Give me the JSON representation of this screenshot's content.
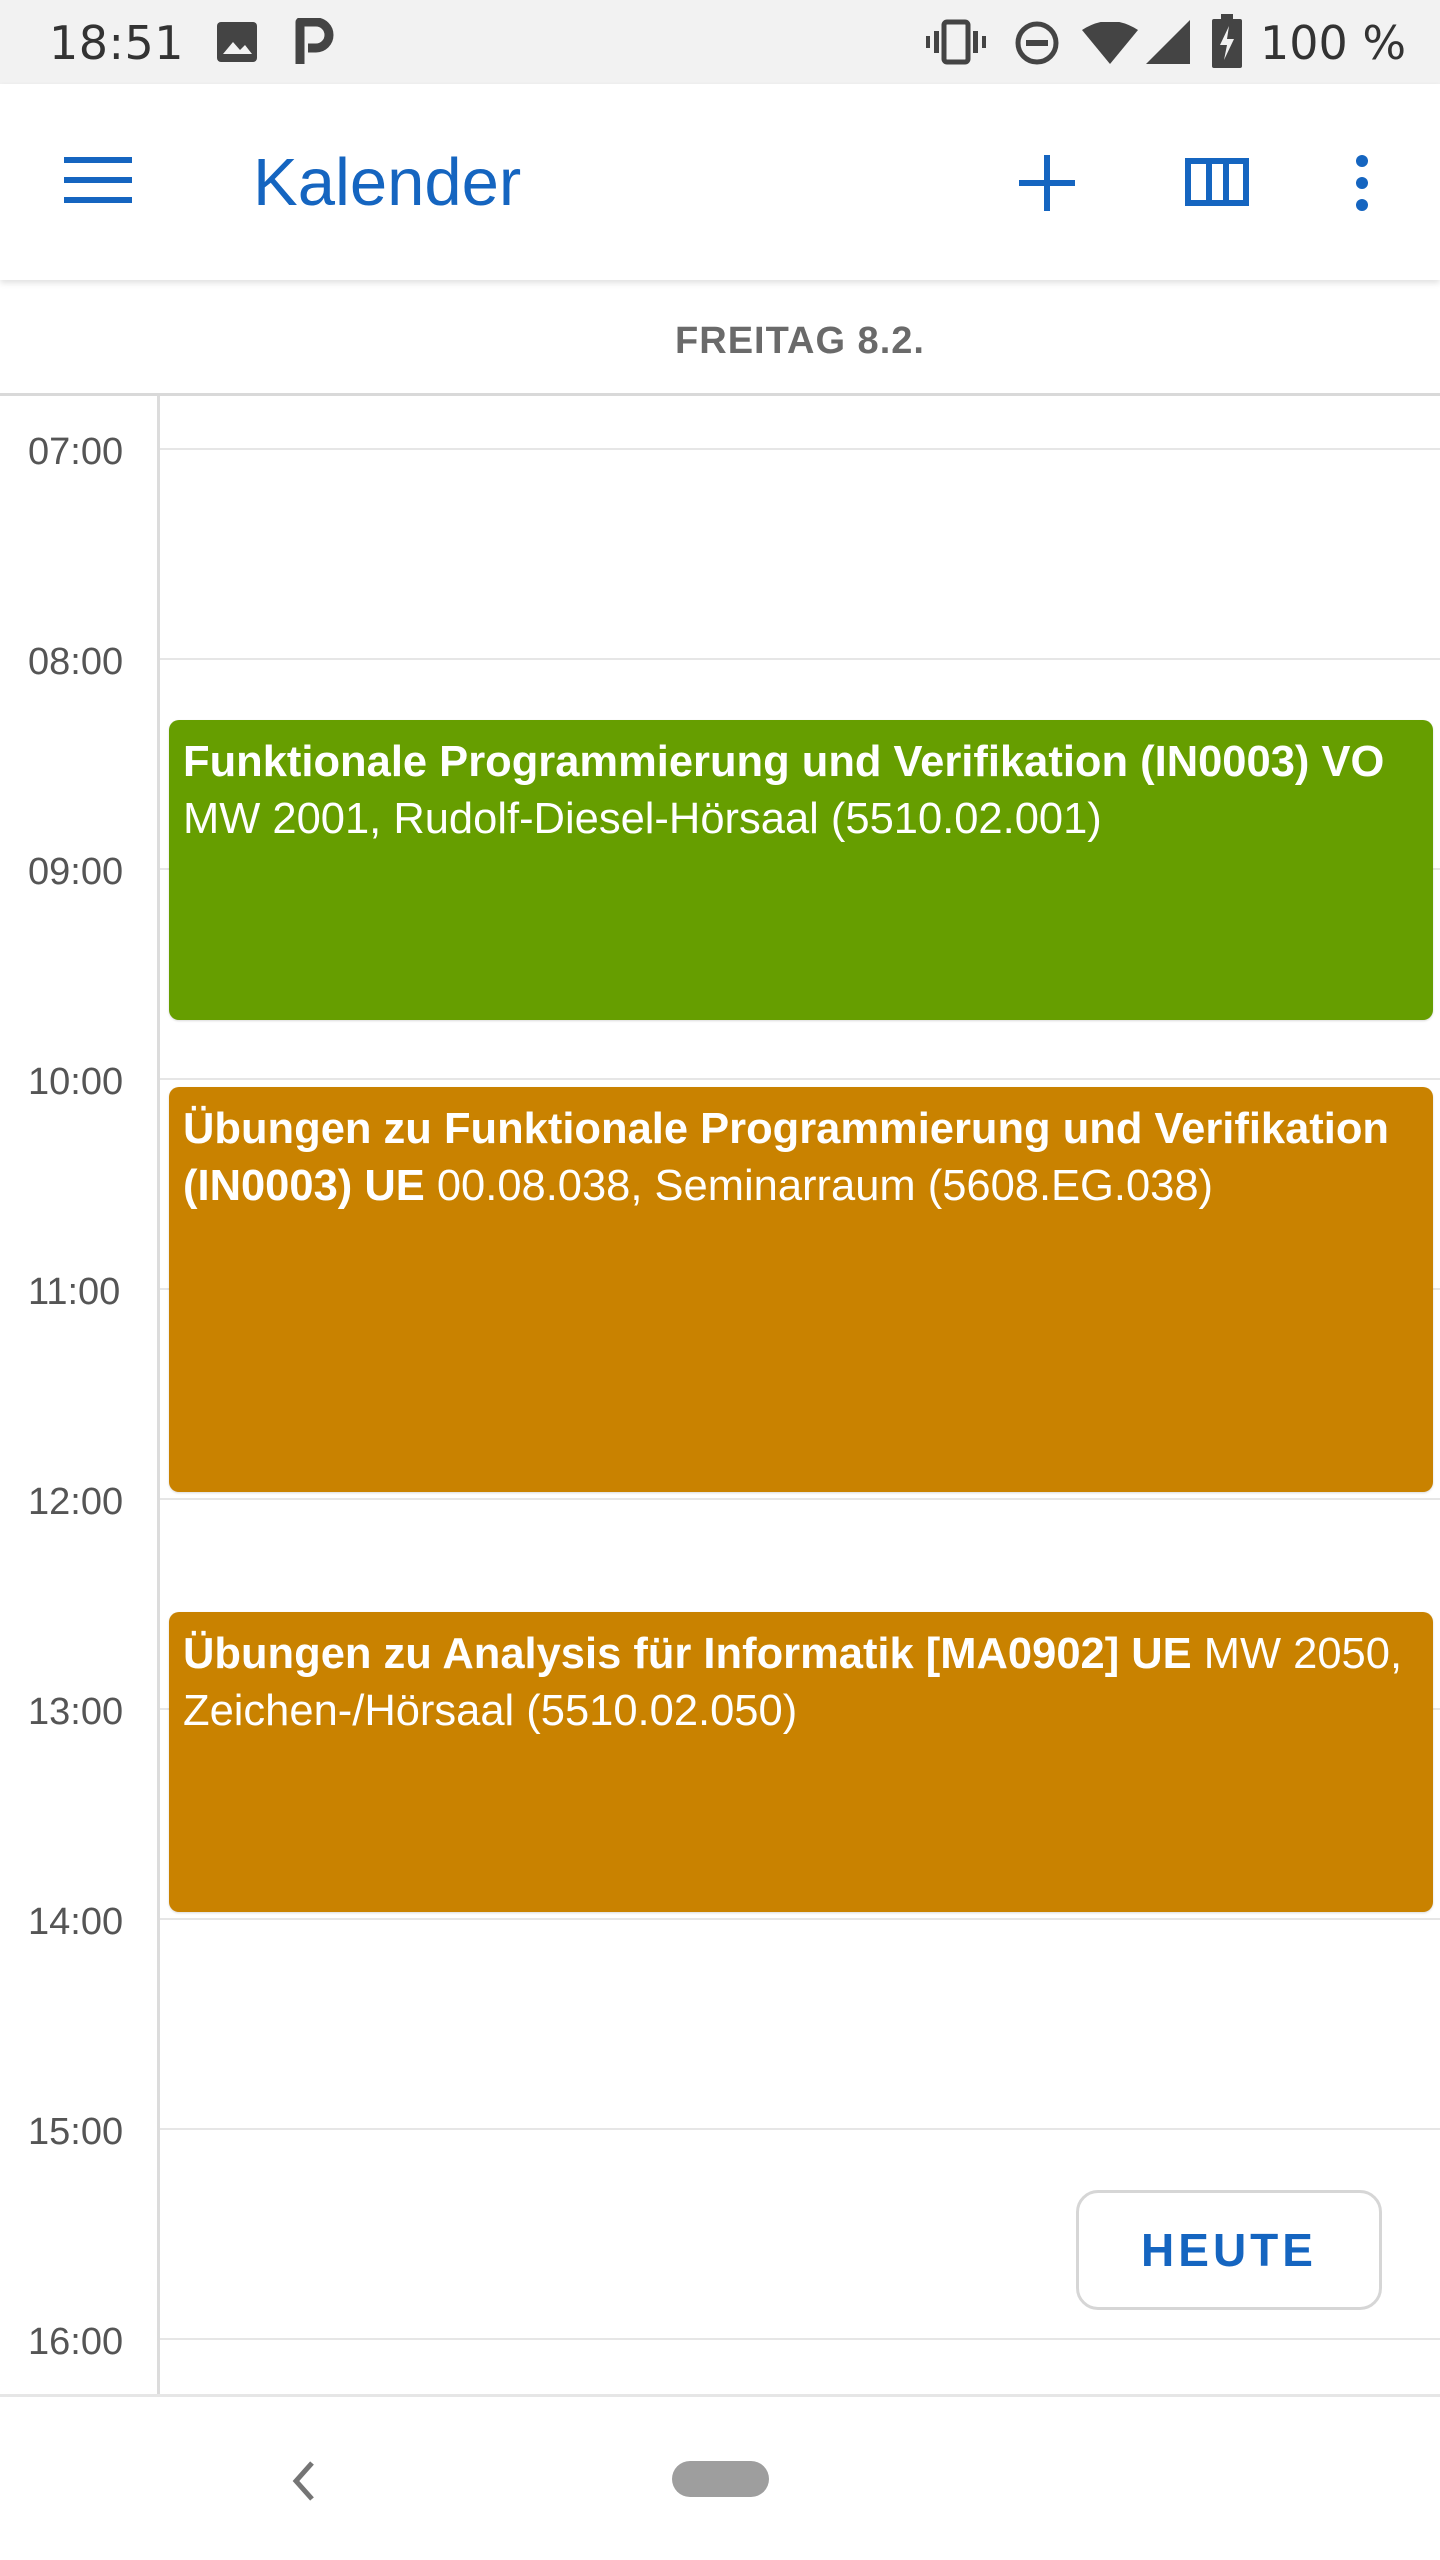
{
  "status_bar": {
    "time": "18:51",
    "battery_percent": "100 %",
    "icons": [
      "image-icon",
      "parking-icon",
      "vibrate-icon",
      "do-not-disturb-icon",
      "wifi-icon",
      "signal-icon",
      "battery-charging-icon"
    ]
  },
  "app_bar": {
    "title": "Kalender",
    "actions": [
      "menu-icon",
      "add-icon",
      "view-columns-icon",
      "more-vert-icon"
    ]
  },
  "day_header": {
    "label": "FREITAG 8.2."
  },
  "time_labels": [
    "07:00",
    "08:00",
    "09:00",
    "10:00",
    "11:00",
    "12:00",
    "13:00",
    "14:00",
    "15:00",
    "16:00"
  ],
  "events": [
    {
      "title": "Funktionale Programmierung und Verifikation (IN0003) VO",
      "location": "MW 2001, Rudolf-Diesel-Hörsaal (5510.02.001)",
      "color": "#669e00"
    },
    {
      "title": "Übungen zu Funktionale Programmierung und Verifikation (IN0003) UE",
      "location": "00.08.038, Seminarraum (5608.EG.038)",
      "color": "#c98200"
    },
    {
      "title": "Übungen zu Analysis für Informatik [MA0902] UE",
      "location": "MW 2050, Zeichen-/Hörsaal (5510.02.050)",
      "color": "#c98200"
    }
  ],
  "today_button": {
    "label": "HEUTE"
  },
  "colors": {
    "accent": "#1565c0",
    "event_green": "#669e00",
    "event_orange": "#c98200"
  },
  "nav_bar": {
    "icons": [
      "back-icon",
      "home-pill-icon"
    ]
  }
}
